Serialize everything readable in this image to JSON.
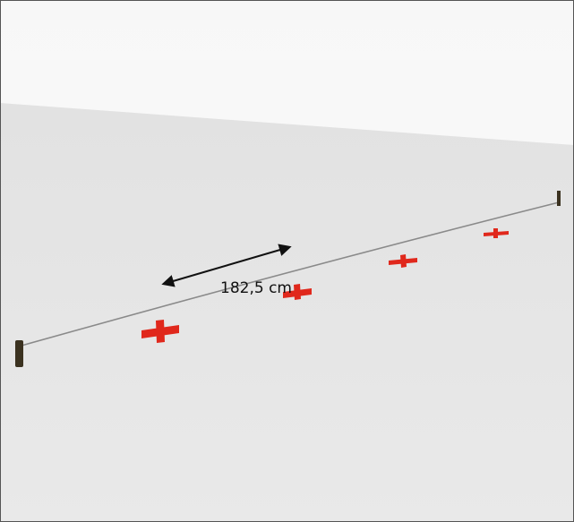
{
  "label": "182,5 cm"
}
